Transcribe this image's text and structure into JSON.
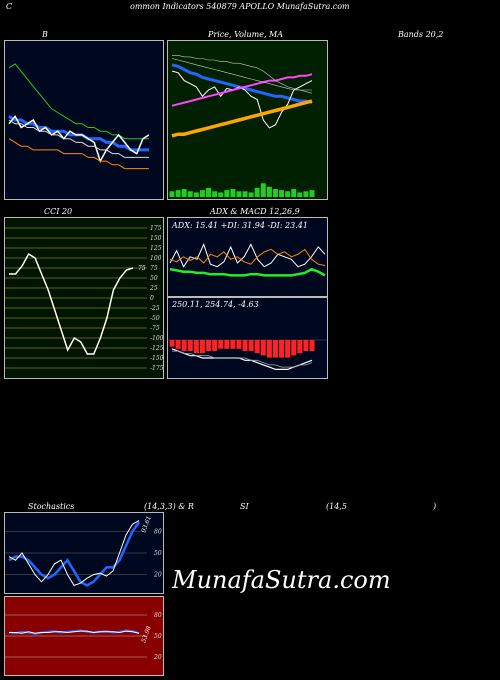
{
  "header": {
    "left": "C",
    "title": "ommon  Indicators 540879 APOLLO MunafaSutra.com"
  },
  "labels": {
    "bb": "B",
    "price": "Price,  Volume,  MA",
    "bands": "Bands 20,2",
    "cci": "CCI 20",
    "adx_macd": "ADX  & MACD 12,26,9",
    "stoch": "Stochastics",
    "stoch_params": "(14,3,3) & R",
    "rsi_si": "SI",
    "rsi_params": "(14,5",
    "close_paren": ")"
  },
  "watermark": "MunafaSutra.com",
  "colors": {
    "bb_bg": "#000820",
    "price_bg": "#002000",
    "cci_bg": "#001400",
    "adx_bg": "#000820",
    "macd_bg": "#000820",
    "stoch_bg": "#000820",
    "rsi_bg": "#880000"
  },
  "chart_data": [
    {
      "type": "line",
      "panel": "bollinger",
      "title": "Bollinger Bands 20,2",
      "series": [
        {
          "color": "#22cc22",
          "values": [
            95,
            96,
            94,
            92,
            90,
            88,
            86,
            84,
            83,
            82,
            81,
            80,
            80,
            79,
            79,
            78,
            78,
            77,
            77,
            76,
            76,
            76,
            76,
            76
          ]
        },
        {
          "color": "#2266ff",
          "values": [
            82,
            81,
            81,
            80,
            80,
            79,
            79,
            78,
            78,
            78,
            77,
            77,
            77,
            76,
            76,
            76,
            75,
            75,
            74,
            74,
            73,
            73,
            73,
            73
          ]
        },
        {
          "color": "#ffffff",
          "values": [
            80,
            82,
            79,
            80,
            81,
            78,
            79,
            77,
            78,
            76,
            78,
            77,
            77,
            76,
            75,
            70,
            73,
            75,
            77,
            75,
            73,
            72,
            76,
            77
          ]
        },
        {
          "color": "#dddddd",
          "values": [
            81,
            80,
            80,
            79,
            79,
            78,
            78,
            77,
            77,
            76,
            76,
            75,
            75,
            74,
            74,
            73,
            73,
            72,
            72,
            71,
            71,
            71,
            71,
            71
          ]
        },
        {
          "color": "#ff8800",
          "values": [
            76,
            75,
            74,
            74,
            73,
            73,
            73,
            73,
            73,
            72,
            72,
            72,
            72,
            71,
            71,
            70,
            70,
            69,
            69,
            68,
            68,
            68,
            68,
            68
          ]
        }
      ]
    },
    {
      "type": "line",
      "panel": "price_volume_ma",
      "series": [
        {
          "color": "#2266ff",
          "values": [
            100,
            99,
            97,
            95,
            94,
            92,
            91,
            90,
            89,
            88,
            87,
            86,
            85,
            84,
            83,
            82,
            81,
            80,
            80,
            79,
            78,
            77,
            77,
            76
          ]
        },
        {
          "color": "#ffffff",
          "values": [
            96,
            95,
            90,
            88,
            86,
            80,
            84,
            86,
            80,
            85,
            84,
            86,
            84,
            80,
            78,
            65,
            60,
            62,
            70,
            75,
            84,
            86,
            88,
            90
          ]
        },
        {
          "color": "#ff44ff",
          "values": [
            74,
            75,
            76,
            77,
            78,
            79,
            80,
            81,
            82,
            83,
            84,
            85,
            86,
            87,
            88,
            89,
            90,
            90,
            91,
            92,
            92,
            93,
            93,
            94
          ]
        },
        {
          "color": "#ffa500",
          "values": [
            55,
            56,
            56,
            57,
            58,
            59,
            60,
            61,
            62,
            63,
            64,
            65,
            66,
            67,
            68,
            69,
            70,
            71,
            72,
            73,
            74,
            75,
            76,
            77
          ]
        }
      ],
      "volume": [
        5,
        6,
        7,
        5,
        4,
        6,
        8,
        5,
        4,
        6,
        7,
        5,
        5,
        4,
        8,
        12,
        9,
        7,
        6,
        5,
        7,
        4,
        5,
        6
      ]
    },
    {
      "type": "line",
      "panel": "cci",
      "title": "CCI 20",
      "yticks": [
        175,
        150,
        125,
        100,
        75,
        50,
        25,
        0,
        -25,
        -50,
        -75,
        -100,
        -125,
        -150,
        -175
      ],
      "last_value": "75",
      "values": [
        60,
        60,
        80,
        110,
        100,
        60,
        20,
        -30,
        -80,
        -130,
        -100,
        -110,
        -140,
        -140,
        -100,
        -50,
        20,
        50,
        70,
        75
      ]
    },
    {
      "type": "line",
      "panel": "adx",
      "title": "ADX: 15.41  +DI: 31.94  -DI: 23.41",
      "adx_text": "ADX: 15.41  +DI: 31.94  -DI: 23.41",
      "series": [
        {
          "color": "#22ee22",
          "values": [
            20,
            19,
            18,
            18,
            17,
            17,
            16,
            16,
            16,
            15,
            15,
            15,
            16,
            16,
            15,
            15,
            15,
            15,
            15,
            16,
            17,
            20,
            18,
            15
          ]
        },
        {
          "color": "#ffffff",
          "values": [
            25,
            35,
            22,
            30,
            28,
            40,
            24,
            22,
            26,
            38,
            25,
            30,
            40,
            28,
            22,
            25,
            32,
            30,
            28,
            22,
            24,
            30,
            38,
            32
          ]
        },
        {
          "color": "#ff8800",
          "values": [
            28,
            26,
            30,
            27,
            30,
            25,
            32,
            30,
            34,
            28,
            30,
            26,
            24,
            30,
            34,
            36,
            32,
            34,
            30,
            32,
            36,
            28,
            24,
            23
          ]
        }
      ]
    },
    {
      "type": "bar",
      "panel": "macd",
      "title": "250.11,  254.74,  -4.63",
      "macd_text": "250.11,  254.74,  -4.63",
      "hist": [
        -3,
        -4,
        -5,
        -5,
        -6,
        -6,
        -5,
        -5,
        -4,
        -4,
        -4,
        -4,
        -5,
        -5,
        -6,
        -7,
        -8,
        -8,
        -8,
        -8,
        -7,
        -6,
        -5,
        -5
      ]
    },
    {
      "type": "line",
      "panel": "stochastics",
      "title": "Stochastics (14,3,3)",
      "yticks": [
        80,
        50,
        20
      ],
      "last_value": "93.61",
      "series": [
        {
          "color": "#2266ff",
          "values": [
            40,
            45,
            45,
            40,
            30,
            20,
            15,
            20,
            30,
            40,
            25,
            10,
            5,
            10,
            20,
            30,
            30,
            40,
            60,
            80,
            93
          ]
        },
        {
          "color": "#ffffff",
          "values": [
            45,
            40,
            50,
            35,
            20,
            10,
            20,
            35,
            40,
            20,
            5,
            8,
            15,
            20,
            22,
            18,
            25,
            50,
            75,
            90,
            95
          ]
        }
      ]
    },
    {
      "type": "line",
      "panel": "rsi",
      "title": "RSI (14,5)",
      "yticks": [
        80,
        50,
        20
      ],
      "last_value": "53.98",
      "series": [
        {
          "color": "#2266ff",
          "values": [
            55,
            54,
            56,
            55,
            53,
            55,
            56,
            57,
            55,
            56,
            57,
            58,
            56,
            55,
            56,
            57,
            55,
            56,
            58,
            57,
            54
          ]
        },
        {
          "color": "#ffffff",
          "values": [
            55,
            55,
            54,
            56,
            54,
            55,
            55,
            56,
            56,
            55,
            56,
            57,
            57,
            55,
            56,
            56,
            56,
            55,
            57,
            56,
            54
          ]
        }
      ]
    }
  ]
}
